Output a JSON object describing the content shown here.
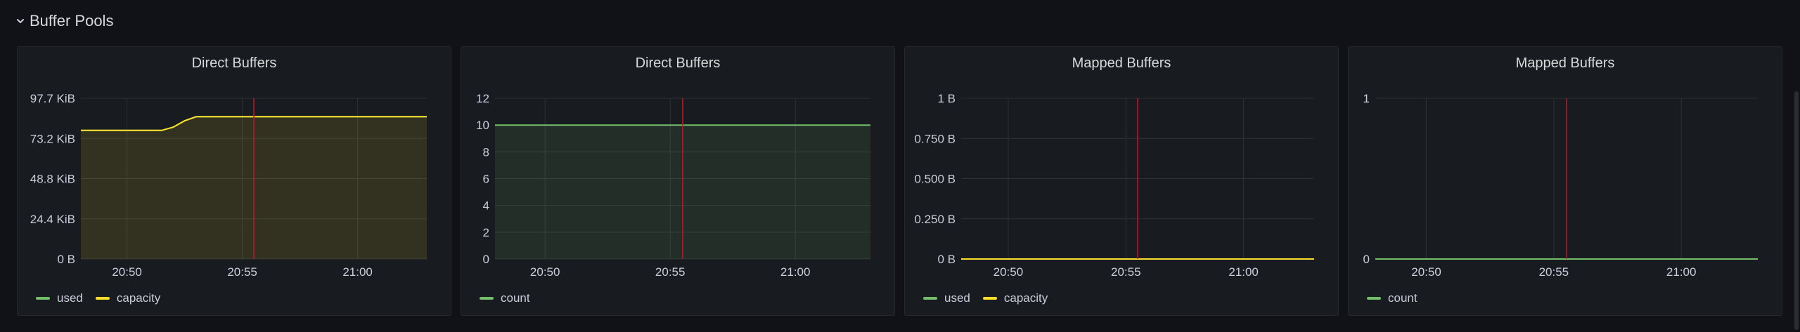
{
  "row": {
    "title": "Buffer Pools",
    "icon": "chevron-down-icon"
  },
  "colors": {
    "used": "#73bf69",
    "capacity": "#fade2a",
    "cursor": "#c4162a",
    "grid": "#2c3235",
    "text": "#ccccdc"
  },
  "chart_data": [
    {
      "type": "area",
      "title": "Direct Buffers",
      "x_ticks": [
        "20:50",
        "20:55",
        "21:00"
      ],
      "y_ticks": [
        "0 B",
        "24.4 KiB",
        "48.8 KiB",
        "73.2 KiB",
        "97.7 KiB"
      ],
      "ylim": [
        0,
        100000
      ],
      "x": [
        "20:48",
        "20:51.5",
        "20:52",
        "20:52.5",
        "20:53",
        "21:03"
      ],
      "series": [
        {
          "name": "used",
          "values": [
            80000,
            80000,
            82000,
            86000,
            88500,
            88500
          ]
        },
        {
          "name": "capacity",
          "values": [
            80000,
            80000,
            82000,
            86000,
            88500,
            88500
          ]
        }
      ],
      "cursor": "20:55.5",
      "legend": [
        "used",
        "capacity"
      ]
    },
    {
      "type": "area",
      "title": "Direct Buffers",
      "x_ticks": [
        "20:50",
        "20:55",
        "21:00"
      ],
      "y_ticks": [
        "0",
        "2",
        "4",
        "6",
        "8",
        "10",
        "12"
      ],
      "ylim": [
        0,
        12
      ],
      "x": [
        "20:48",
        "21:03"
      ],
      "series": [
        {
          "name": "count",
          "values": [
            10,
            10
          ]
        }
      ],
      "cursor": "20:55.5",
      "legend": [
        "count"
      ]
    },
    {
      "type": "line",
      "title": "Mapped Buffers",
      "x_ticks": [
        "20:50",
        "20:55",
        "21:00"
      ],
      "y_ticks": [
        "0 B",
        "0.250 B",
        "0.500 B",
        "0.750 B",
        "1 B"
      ],
      "ylim": [
        0,
        1
      ],
      "x": [
        "20:48",
        "21:03"
      ],
      "series": [
        {
          "name": "used",
          "values": [
            0,
            0
          ]
        },
        {
          "name": "capacity",
          "values": [
            0,
            0
          ]
        }
      ],
      "cursor": "20:55.5",
      "legend": [
        "used",
        "capacity"
      ]
    },
    {
      "type": "line",
      "title": "Mapped Buffers",
      "x_ticks": [
        "20:50",
        "20:55",
        "21:00"
      ],
      "y_ticks": [
        "0",
        "1"
      ],
      "ylim": [
        0,
        1
      ],
      "x": [
        "20:48",
        "21:03"
      ],
      "series": [
        {
          "name": "count",
          "values": [
            0,
            0
          ]
        }
      ],
      "cursor": "20:55.5",
      "legend": [
        "count"
      ]
    }
  ]
}
